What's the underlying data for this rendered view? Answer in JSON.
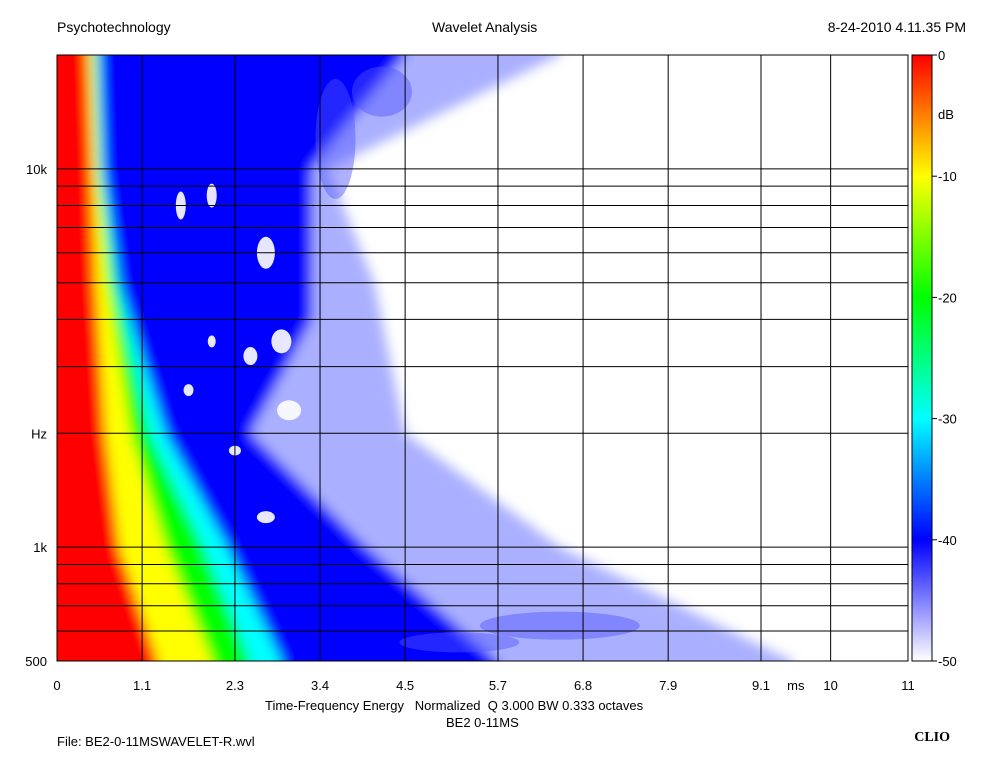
{
  "header": {
    "company": "Psychotechnology",
    "title": "Wavelet Analysis",
    "datetime": "8-24-2010 4.11.35 PM"
  },
  "footer": {
    "xlabel": "Time-Frequency Energy   Normalized  Q 3.000 BW 0.333 octaves",
    "sublabel": "BE2 0-11MS",
    "file": "File: BE2-0-11MSWAVELET-R.wvl",
    "brand": "CLIO"
  },
  "chart_data": {
    "type": "heatmap",
    "x_unit": "ms",
    "y_unit": "Hz",
    "z_unit": "dB",
    "xlim": [
      0,
      11
    ],
    "ylim": [
      500,
      20000
    ],
    "y_scale": "log",
    "zlim": [
      -50,
      0
    ],
    "x_ticks": [
      {
        "v": 0,
        "label": "0"
      },
      {
        "v": 1.1,
        "label": "1.1"
      },
      {
        "v": 2.3,
        "label": "2.3"
      },
      {
        "v": 3.4,
        "label": "3.4"
      },
      {
        "v": 4.5,
        "label": "4.5"
      },
      {
        "v": 5.7,
        "label": "5.7"
      },
      {
        "v": 6.8,
        "label": "6.8"
      },
      {
        "v": 7.9,
        "label": "7.9"
      },
      {
        "v": 9.1,
        "label": "9.1"
      },
      {
        "v": 10,
        "label": "10"
      },
      {
        "v": 11,
        "label": "11"
      }
    ],
    "y_ticks": [
      {
        "v": 500,
        "label": "500"
      },
      {
        "v": 1000,
        "label": "1k"
      },
      {
        "v": 10000,
        "label": "10k"
      }
    ],
    "y_unit_label_at": 2000,
    "colorbar_ticks": [
      {
        "v": 0,
        "label": "0"
      },
      {
        "v": -10,
        "label": "-10"
      },
      {
        "v": -20,
        "label": "-20"
      },
      {
        "v": -30,
        "label": "-30"
      },
      {
        "v": -40,
        "label": "-40"
      },
      {
        "v": -50,
        "label": "-50"
      }
    ],
    "colormap": [
      {
        "db": 0,
        "color": "#ff0000"
      },
      {
        "db": -5,
        "color": "#ff8000"
      },
      {
        "db": -10,
        "color": "#ffff00"
      },
      {
        "db": -20,
        "color": "#00ff00"
      },
      {
        "db": -30,
        "color": "#00ffff"
      },
      {
        "db": -40,
        "color": "#0000ff"
      },
      {
        "db": -50,
        "color": "#ffffff"
      }
    ],
    "grid": true,
    "energy_regions_db_isolines": [
      {
        "db": -5,
        "time_ms_at_freq": [
          [
            500,
            1.5
          ],
          [
            1000,
            0.9
          ],
          [
            2000,
            0.7
          ],
          [
            5000,
            0.55
          ],
          [
            10000,
            0.5
          ],
          [
            20000,
            0.45
          ]
        ]
      },
      {
        "db": -20,
        "time_ms_at_freq": [
          [
            500,
            2.9
          ],
          [
            1000,
            2.2
          ],
          [
            2000,
            1.4
          ],
          [
            5000,
            0.8
          ],
          [
            10000,
            0.6
          ],
          [
            20000,
            0.55
          ]
        ]
      },
      {
        "db": -40,
        "time_ms_at_freq": [
          [
            500,
            5.7
          ],
          [
            1000,
            4.0
          ],
          [
            2000,
            2.5
          ],
          [
            4000,
            3.3
          ],
          [
            10000,
            3.3
          ],
          [
            20000,
            4.5
          ]
        ]
      },
      {
        "db": -48,
        "time_ms_at_freq": [
          [
            500,
            9.5
          ],
          [
            1000,
            6.5
          ],
          [
            2000,
            4.5
          ],
          [
            5000,
            4.1
          ],
          [
            10000,
            3.5
          ],
          [
            20000,
            6.5
          ]
        ]
      }
    ]
  }
}
